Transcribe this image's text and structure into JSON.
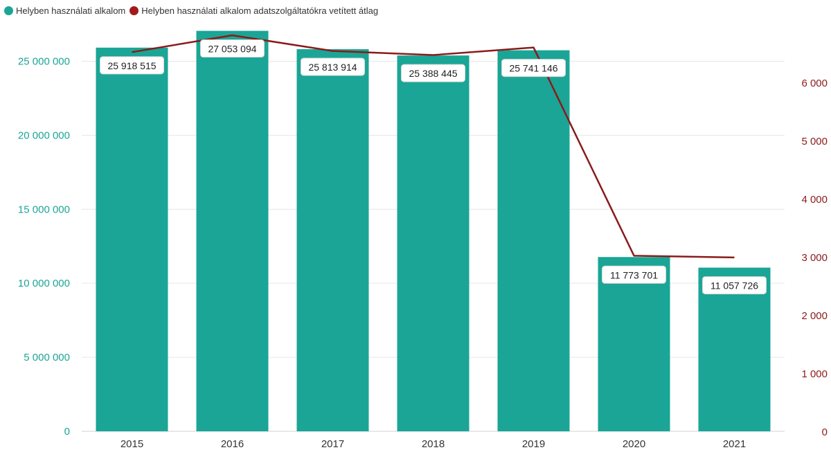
{
  "chart_data": {
    "type": "bar",
    "categories": [
      "2015",
      "2016",
      "2017",
      "2018",
      "2019",
      "2020",
      "2021"
    ],
    "series": [
      {
        "name": "Helyben használati alkalom",
        "type": "bar",
        "axis": "left",
        "color": "#1BA596",
        "values": [
          25918515,
          27053094,
          25813914,
          25388445,
          25741146,
          11773701,
          11057726
        ],
        "labels": [
          "25 918 515",
          "27 053 094",
          "25 813 914",
          "25 388 445",
          "25 741 146",
          "11 773 701",
          "11 057 726"
        ]
      },
      {
        "name": "Helyben használati alkalom adatszolgáltatókra vetített átlag",
        "type": "line",
        "axis": "right",
        "color": "#8B1A1A",
        "values": [
          6520,
          6810,
          6540,
          6470,
          6600,
          3020,
          2990
        ]
      }
    ],
    "y_left": {
      "ylim": [
        0,
        27500000
      ],
      "ticks": [
        0,
        5000000,
        10000000,
        15000000,
        20000000,
        25000000
      ],
      "tick_labels": [
        "0",
        "5 000 000",
        "10 000 000",
        "15 000 000",
        "20 000 000",
        "25 000 000"
      ],
      "color": "#1BA596"
    },
    "y_right": {
      "ylim": [
        0,
        7000
      ],
      "ticks": [
        0,
        1000,
        2000,
        3000,
        4000,
        5000,
        6000
      ],
      "tick_labels": [
        "0",
        "1 000",
        "2 000",
        "3 000",
        "4 000",
        "5 000",
        "6 000"
      ],
      "color": "#8B1A1A"
    },
    "grid": true,
    "legend_position": "top-left"
  }
}
